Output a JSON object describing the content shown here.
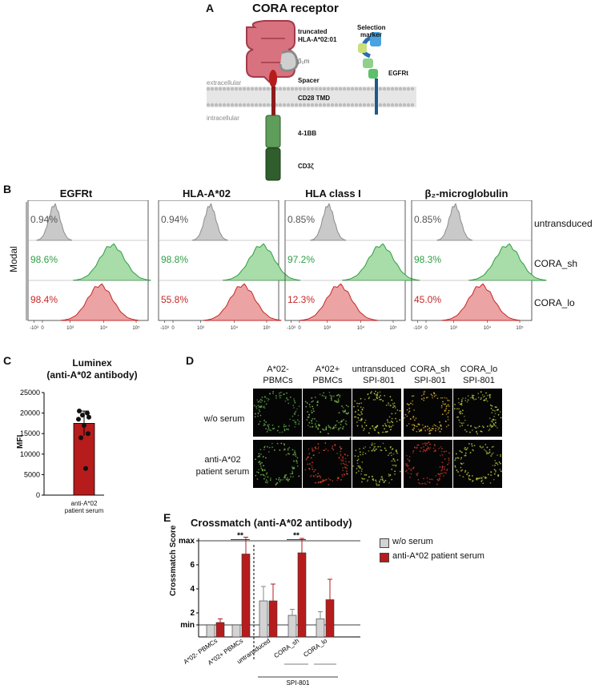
{
  "panel_a": {
    "letter": "A",
    "title": "CORA receptor",
    "labels": {
      "truncated": "truncated",
      "hla": "HLA-A*02:01",
      "b2m": "β₂m",
      "spacer": "Spacer",
      "cd28": "CD28 TMD",
      "fourbb": "4-1BB",
      "cd3z": "CD3ζ",
      "extracellular": "extracellular",
      "intracellular": "intracellular",
      "selection1": "Selection",
      "selection2": "marker",
      "egfrt": "EGFRt"
    }
  },
  "panel_b": {
    "letter": "B",
    "ylabel": "Modal",
    "columns": [
      "EGFRt",
      "HLA-A*02",
      "HLA class I",
      "β₂-microglobulin"
    ],
    "rows": [
      "untransduced",
      "CORA_sh",
      "CORA_lo"
    ],
    "percentages": [
      [
        "0.94%",
        "0.94%",
        "0.85%",
        "0.85%"
      ],
      [
        "98.6%",
        "98.8%",
        "97.2%",
        "98.3%"
      ],
      [
        "98.4%",
        "55.8%",
        "12.3%",
        "45.0%"
      ]
    ],
    "peak_positions": [
      [
        0.22,
        0.43,
        0.36,
        0.36
      ],
      [
        0.7,
        0.86,
        0.8,
        0.8
      ],
      [
        0.6,
        0.7,
        0.45,
        0.58
      ]
    ],
    "tick_labels": [
      "-10³",
      "0",
      "10³",
      "10⁴",
      "10⁵"
    ],
    "colors": {
      "untransduced": "#8c8c8c",
      "CORA_sh": "#2f9e44",
      "CORA_lo": "#c62828"
    }
  },
  "panel_c": {
    "letter": "C",
    "title1": "Luminex",
    "title2": "(anti-A*02 antibody)",
    "ylabel": "MFI",
    "yticks": [
      "25000",
      "20000",
      "15000",
      "10000",
      "5000",
      "0"
    ],
    "xlabel1": "anti-A*02",
    "xlabel2": "patient serum",
    "chart_data": {
      "type": "bar",
      "categories": [
        "anti-A*02 patient serum"
      ],
      "values": [
        17500
      ],
      "error": 3000,
      "points": [
        20500,
        20000,
        19500,
        19000,
        18500,
        17000,
        15000,
        14000,
        6500
      ],
      "ylim": [
        0,
        25000
      ]
    }
  },
  "panel_d": {
    "letter": "D",
    "col_labels": [
      [
        "A*02-",
        "PBMCs"
      ],
      [
        "A*02+",
        "PBMCs"
      ],
      [
        "untransduced",
        "SPI-801"
      ],
      [
        "CORA_sh",
        "SPI-801"
      ],
      [
        "CORA_lo",
        "SPI-801"
      ]
    ],
    "row_labels": [
      [
        "w/o serum"
      ],
      [
        "anti-A*02",
        "patient serum"
      ]
    ]
  },
  "panel_e": {
    "letter": "E",
    "title": "Crossmatch (anti-A*02 antibody)",
    "ylabel": "Crossmatch Score",
    "yticks": [
      "max",
      "6",
      "4",
      "2",
      "min"
    ],
    "legend": [
      "w/o serum",
      "anti-A*02 patient serum"
    ],
    "sig": [
      "**",
      "**"
    ],
    "group_label": "SPI-801",
    "chart_data": {
      "type": "bar",
      "categories": [
        "A*02- PBMCs",
        "A*02+ PBMCs",
        "untransduced",
        "CORA_sh",
        "CORA_lo"
      ],
      "series": [
        {
          "name": "w/o serum",
          "values": [
            1.0,
            1.0,
            3.0,
            1.8,
            1.5
          ],
          "errors": [
            0.0,
            0.0,
            1.2,
            0.5,
            0.6
          ],
          "color": "#d3d3d3"
        },
        {
          "name": "anti-A*02 patient serum",
          "values": [
            1.2,
            6.9,
            3.0,
            7.0,
            3.1
          ],
          "errors": [
            0.3,
            1.4,
            1.4,
            1.2,
            1.7
          ],
          "color": "#b71c1c"
        }
      ],
      "ylim": [
        0,
        8.2
      ],
      "reference_lines": {
        "max": 8,
        "min": 1
      }
    }
  }
}
